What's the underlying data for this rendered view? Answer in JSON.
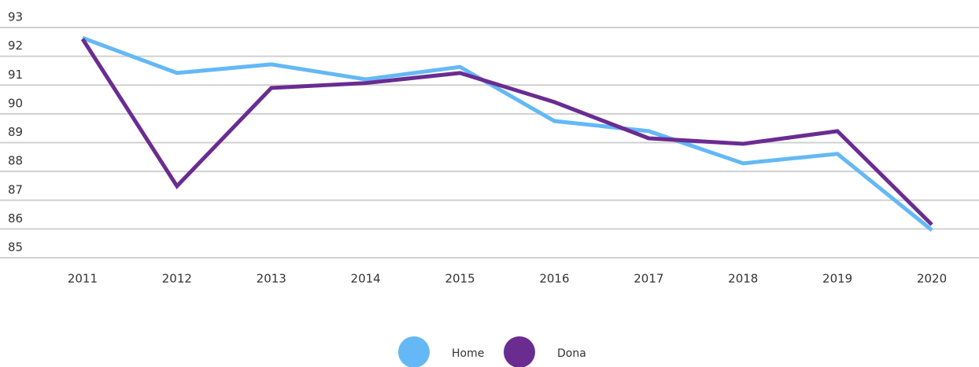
{
  "chart_data": {
    "type": "line",
    "categories": [
      "2011",
      "2012",
      "2013",
      "2014",
      "2015",
      "2016",
      "2017",
      "2018",
      "2019",
      "2020"
    ],
    "series": [
      {
        "name": "Home",
        "color": "#64b8f6",
        "values": [
          92.64,
          91.42,
          91.72,
          91.2,
          91.63,
          89.75,
          89.4,
          88.28,
          88.61,
          85.96
        ]
      },
      {
        "name": "Dona",
        "color": "#6a2c91",
        "values": [
          92.6,
          87.49,
          90.9,
          91.07,
          91.42,
          90.41,
          89.15,
          88.96,
          89.4,
          86.15
        ]
      }
    ],
    "ylim": [
      85,
      93
    ],
    "yticks": [
      85,
      86,
      87,
      88,
      89,
      90,
      91,
      92,
      93
    ],
    "grid": true,
    "legend": "bottom"
  }
}
